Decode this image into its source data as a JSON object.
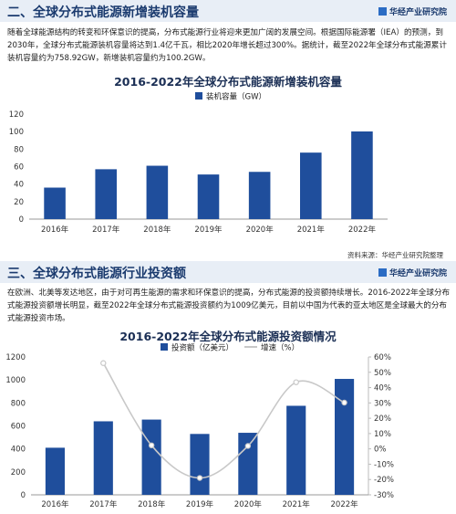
{
  "brand": "华经产业研究院",
  "section1": {
    "title": "二、全球分布式能源新增装机容量",
    "paragraph": "随着全球能源结构的转变和环保意识的提高，分布式能源行业将迎来更加广阔的发展空间。根据国际能源署（IEA）的预测，到2030年，全球分布式能源装机容量将达到1.4亿千瓦，相比2020年增长超过300%。据统计，截至2022年全球分布式能源累计装机容量约为758.92GW，新增装机容量约为100.2GW。",
    "source": "资料来源：华经产业研究院整理"
  },
  "section2": {
    "title": "三、全球分布式能源行业投资额",
    "paragraph": "在欧洲、北美等发达地区，由于对可再生能源的需求和环保意识的提高，分布式能源的投资额持续增长。2016-2022年全球分布式能源投资额增长明显，截至2022年全球分布式能源投资额约为1009亿美元，目前以中国为代表的亚太地区是全球最大的分布式能源投资市场。"
  },
  "chart_data": [
    {
      "type": "bar",
      "title": "2016-2022年全球分布式能源新增装机容量",
      "categories": [
        "2016年",
        "2017年",
        "2018年",
        "2019年",
        "2020年",
        "2021年",
        "2022年"
      ],
      "series": [
        {
          "name": "装机容量（GW）",
          "values": [
            36,
            57,
            61,
            51,
            54,
            76,
            100.2
          ]
        }
      ],
      "ylim": [
        0,
        120
      ],
      "yticks": [
        0,
        20,
        40,
        60,
        80,
        100,
        120
      ],
      "legend": "top",
      "colors": {
        "bar": "#1f4e9c"
      }
    },
    {
      "type": "bar",
      "title": "2016-2022年全球分布式能源投资额情况",
      "categories": [
        "2016年",
        "2017年",
        "2018年",
        "2019年",
        "2020年",
        "2021年",
        "2022年"
      ],
      "series": [
        {
          "name": "投资额（亿美元）",
          "type": "bar",
          "axis": "left",
          "values": [
            410,
            640,
            655,
            530,
            540,
            775,
            1009
          ]
        },
        {
          "name": "增速（%）",
          "type": "line",
          "axis": "right",
          "values": [
            null,
            56,
            2.3,
            -19,
            1.9,
            43.5,
            30.2
          ]
        }
      ],
      "ylim": [
        0,
        1200
      ],
      "yticks": [
        0,
        200,
        400,
        600,
        800,
        1000,
        1200
      ],
      "y2lim": [
        -30,
        60
      ],
      "y2ticks": [
        "-30%",
        "-20%",
        "-10%",
        "0%",
        "10%",
        "20%",
        "30%",
        "40%",
        "50%",
        "60%"
      ],
      "legend": "top",
      "colors": {
        "bar": "#1f4e9c",
        "line": "#c8c8c8"
      }
    }
  ]
}
